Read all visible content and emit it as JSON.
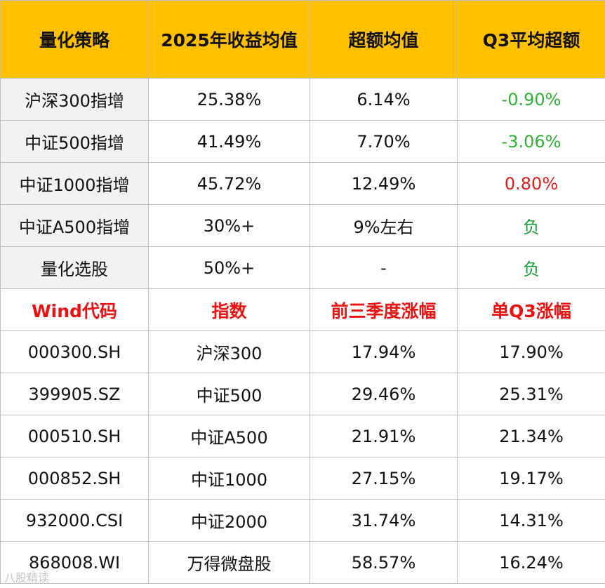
{
  "colors": {
    "header_bg": "#ffc000",
    "label_bg": "#f2f2f2",
    "subheader_text": "#ee1111",
    "negative_excess": "#2fb232",
    "positive_excess": "#e21a1a"
  },
  "top_table": {
    "headers": [
      "量化策略",
      "2025年收益均值",
      "超额均值",
      "Q3平均超额"
    ],
    "rows": [
      {
        "strategy": "沪深300指增",
        "return_2025": "25.38%",
        "excess_avg": "6.14%",
        "q3_excess": "-0.90%"
      },
      {
        "strategy": "中证500指增",
        "return_2025": "41.49%",
        "excess_avg": "7.70%",
        "q3_excess": "-3.06%"
      },
      {
        "strategy": "中证1000指增",
        "return_2025": "45.72%",
        "excess_avg": "12.49%",
        "q3_excess": "0.80%"
      },
      {
        "strategy": "中证A500指增",
        "return_2025": "30%+",
        "excess_avg": "9%左右",
        "q3_excess": "负"
      },
      {
        "strategy": "量化选股",
        "return_2025": "50%+",
        "excess_avg": "-",
        "q3_excess": "负"
      }
    ]
  },
  "bottom_table": {
    "headers": [
      "Wind代码",
      "指数",
      "前三季度涨幅",
      "单Q3涨幅"
    ],
    "rows": [
      {
        "code": "000300.SH",
        "index": "沪深300",
        "ytd_q3": "17.94%",
        "q3_only": "17.90%"
      },
      {
        "code": "399905.SZ",
        "index": "中证500",
        "ytd_q3": "29.46%",
        "q3_only": "25.31%"
      },
      {
        "code": "000510.SH",
        "index": "中证A500",
        "ytd_q3": "21.91%",
        "q3_only": "21.34%"
      },
      {
        "code": "000852.SH",
        "index": "中证1000",
        "ytd_q3": "27.15%",
        "q3_only": "19.17%"
      },
      {
        "code": "932000.CSI",
        "index": "中证2000",
        "ytd_q3": "31.74%",
        "q3_only": "14.31%"
      },
      {
        "code": "868008.WI",
        "index": "万得微盘股",
        "ytd_q3": "58.57%",
        "q3_only": "16.24%"
      }
    ]
  },
  "watermark": "八股精读"
}
